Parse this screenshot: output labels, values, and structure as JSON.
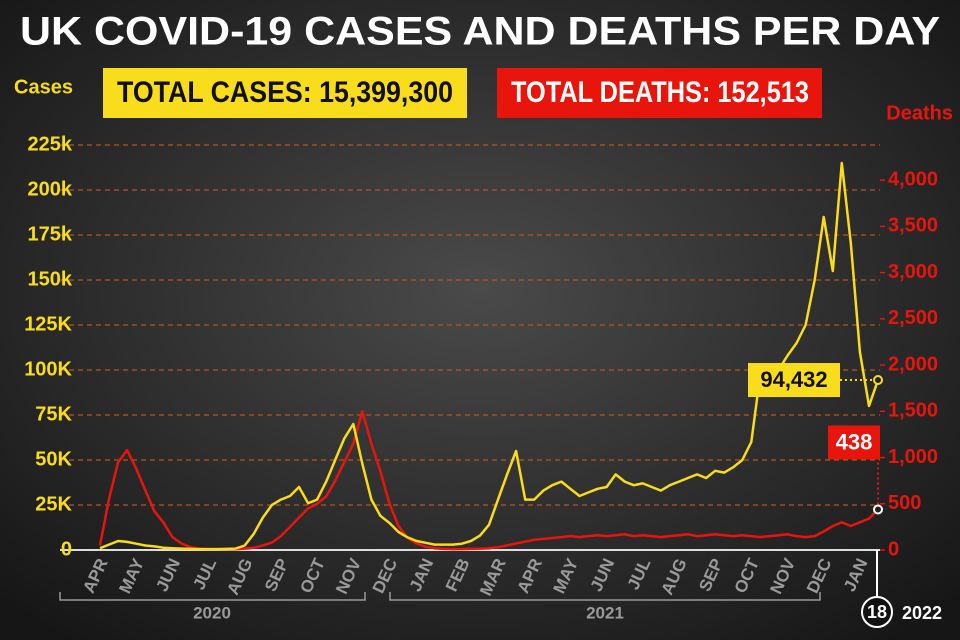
{
  "chart_data": {
    "type": "line",
    "title": "UK COVID-19 CASES AND DEATHS PER DAY",
    "total_cases_label": "TOTAL CASES: 15,399,300",
    "total_deaths_label": "TOTAL DEATHS: 152,513",
    "y_label": "Cases",
    "y2_label": "Deaths",
    "year_labels": [
      "2020",
      "2021",
      "2022"
    ],
    "end_day_label": "18",
    "categories": [
      "APR",
      null,
      null,
      null,
      "MAY",
      null,
      null,
      null,
      "JUN",
      null,
      null,
      null,
      "JUL",
      null,
      null,
      null,
      "AUG",
      null,
      null,
      null,
      "SEP",
      null,
      null,
      null,
      "OCT",
      null,
      null,
      null,
      "NOV",
      null,
      null,
      null,
      "DEC",
      null,
      null,
      null,
      "JAN",
      null,
      null,
      null,
      "FEB",
      null,
      null,
      null,
      "MAR",
      null,
      null,
      null,
      "APR",
      null,
      null,
      null,
      "MAY",
      null,
      null,
      null,
      "JUN",
      null,
      null,
      null,
      "JUL",
      null,
      null,
      null,
      "AUG",
      null,
      null,
      null,
      "SEP",
      null,
      null,
      null,
      "OCT",
      null,
      null,
      null,
      "NOV",
      null,
      null,
      null,
      "DEC",
      null,
      null,
      null,
      "JAN",
      null,
      null
    ],
    "series": [
      {
        "name": "Cases",
        "color": "#f9dc1c",
        "axis": "y",
        "values": [
          1000,
          3000,
          5000,
          4500,
          3500,
          2500,
          2000,
          1300,
          1000,
          800,
          600,
          500,
          500,
          500,
          600,
          800,
          2500,
          9000,
          18000,
          25000,
          28000,
          30000,
          35000,
          26000,
          28000,
          38000,
          50000,
          62000,
          70000,
          48000,
          28000,
          19000,
          15000,
          10000,
          7000,
          5000,
          4000,
          3000,
          3000,
          3000,
          3500,
          5000,
          8000,
          14000,
          28000,
          42000,
          55000,
          28000,
          28000,
          33000,
          36000,
          38000,
          34000,
          30000,
          32000,
          34000,
          35000,
          42000,
          38000,
          36000,
          37000,
          35000,
          33000,
          36000,
          38000,
          40000,
          42000,
          40000,
          44000,
          43000,
          46000,
          50000,
          60000,
          98000,
          95000,
          100000,
          108000,
          115000,
          125000,
          150000,
          185000,
          155000,
          215000,
          170000,
          110000,
          80000,
          94432
        ],
        "value_labels": [
          null,
          null,
          null,
          null,
          null,
          null,
          null,
          null,
          null,
          null,
          null,
          null,
          null,
          null,
          null,
          null,
          null,
          null,
          null,
          null,
          null,
          null,
          null,
          null,
          null,
          null,
          null,
          null,
          null,
          null,
          null,
          null,
          null,
          null,
          null,
          null,
          null,
          null,
          null,
          null,
          null,
          null,
          null,
          null,
          null,
          null,
          null,
          null,
          null,
          null,
          null,
          null,
          null,
          null,
          null,
          null,
          null,
          null,
          null,
          null,
          null,
          null,
          null,
          null,
          null,
          null,
          null,
          null,
          null,
          null,
          null,
          null,
          null,
          null,
          null,
          null,
          null,
          null,
          null,
          null,
          null,
          null,
          null,
          null,
          null,
          null,
          "94,432"
        ]
      },
      {
        "name": "Deaths",
        "color": "#e8150d",
        "axis": "y2",
        "values": [
          50,
          550,
          950,
          1080,
          880,
          650,
          420,
          300,
          140,
          70,
          30,
          15,
          10,
          10,
          10,
          10,
          15,
          25,
          50,
          80,
          150,
          250,
          350,
          450,
          500,
          580,
          750,
          950,
          1150,
          1500,
          1150,
          850,
          500,
          260,
          130,
          70,
          35,
          20,
          12,
          10,
          10,
          12,
          15,
          20,
          30,
          50,
          70,
          90,
          110,
          120,
          130,
          140,
          150,
          140,
          150,
          160,
          150,
          160,
          170,
          150,
          160,
          150,
          140,
          150,
          160,
          170,
          150,
          160,
          170,
          160,
          150,
          160,
          150,
          140,
          150,
          160,
          170,
          150,
          140,
          150,
          200,
          260,
          300,
          260,
          300,
          340,
          438
        ],
        "value_labels": [
          null,
          null,
          null,
          null,
          null,
          null,
          null,
          null,
          null,
          null,
          null,
          null,
          null,
          null,
          null,
          null,
          null,
          null,
          null,
          null,
          null,
          null,
          null,
          null,
          null,
          null,
          null,
          null,
          null,
          null,
          null,
          null,
          null,
          null,
          null,
          null,
          null,
          null,
          null,
          null,
          null,
          null,
          null,
          null,
          null,
          null,
          null,
          null,
          null,
          null,
          null,
          null,
          null,
          null,
          null,
          null,
          null,
          null,
          null,
          null,
          null,
          null,
          null,
          null,
          null,
          null,
          null,
          null,
          null,
          null,
          null,
          null,
          null,
          null,
          null,
          null,
          null,
          null,
          null,
          null,
          null,
          null,
          null,
          null,
          null,
          null,
          "438"
        ]
      }
    ],
    "ylim": [
      0,
      225000
    ],
    "yticks": [
      0,
      {
        "value": 25000,
        "label": "25K"
      },
      {
        "value": 50000,
        "label": "50K"
      },
      {
        "value": 75000,
        "label": "75K"
      },
      {
        "value": 100000,
        "label": "100K"
      },
      {
        "value": 125000,
        "label": "125K"
      },
      {
        "value": 150000,
        "label": "150k"
      },
      {
        "value": 175000,
        "label": "175k"
      },
      {
        "value": 200000,
        "label": "200k"
      },
      {
        "value": 225000,
        "label": "225k"
      }
    ],
    "y2lim": [
      0,
      4380
    ],
    "y2ticks": [
      0,
      500,
      {
        "value": 1000,
        "label": "1,000"
      },
      {
        "value": 1500,
        "label": "1,500"
      },
      {
        "value": 2000,
        "label": "2,000"
      },
      {
        "value": 2500,
        "label": "2,500"
      },
      {
        "value": 3000,
        "label": "3,000"
      },
      {
        "value": 3500,
        "label": "3,500"
      },
      {
        "value": 4000,
        "label": "4,000"
      }
    ],
    "grid": true
  }
}
